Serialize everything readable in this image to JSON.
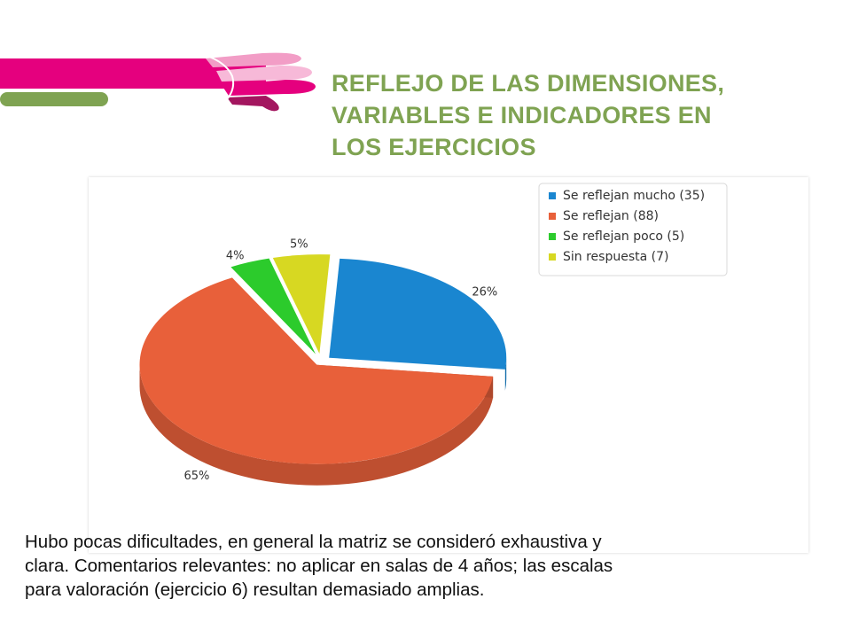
{
  "slide": {
    "title_lines": [
      "REFLEJO DE LAS DIMENSIONES,",
      "VARIABLES E INDICADORES EN",
      "LOS EJERCICIOS"
    ],
    "caption_lines": [
      "Hubo pocas dificultades, en general la matriz se consideró exhaustiva y",
      "clara. Comentarios relevantes: no aplicar en salas de 4 años; las escalas",
      "para valoración (ejercicio 6) resultan demasiado amplias."
    ]
  },
  "colors": {
    "title": "#7fa352",
    "brand_magenta": "#e5007e",
    "brand_green": "#7fa352",
    "brand_pink": "#f29dc6",
    "brand_dark": "#a3165f"
  },
  "chart_data": {
    "type": "pie",
    "title": "",
    "style": "3d-exploded",
    "legend_position": "top-right",
    "slices": [
      {
        "label": "Se reflejan mucho (35)",
        "value": 35,
        "percent_label": "26%",
        "color": "#1a86d0"
      },
      {
        "label": "Se reflejan (88)",
        "value": 88,
        "percent_label": "65%",
        "color": "#e8603a"
      },
      {
        "label": "Se reflejan poco (5)",
        "value": 5,
        "percent_label": "4%",
        "color": "#2ccb2c"
      },
      {
        "label": "Sin respuesta (7)",
        "value": 7,
        "percent_label": "5%",
        "color": "#d7d822"
      }
    ]
  }
}
